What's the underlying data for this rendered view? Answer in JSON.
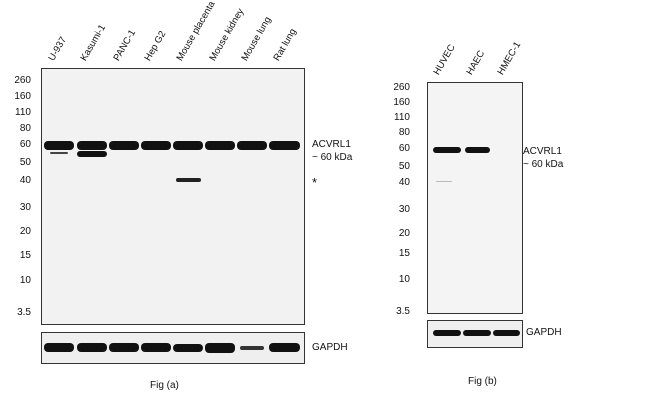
{
  "panel_a": {
    "lanes": [
      "U-937",
      "Kasumi-1",
      "PANC-1",
      "Hep G2",
      "Mouse placenta",
      "Mouse kidney",
      "Mouse lung",
      "Rat lung"
    ],
    "markers": [
      "260",
      "160",
      "110",
      "80",
      "60",
      "50",
      "40",
      "30",
      "20",
      "15",
      "10",
      "3.5"
    ],
    "target_label_1": "ACVRL1",
    "target_label_2": "~ 60 kDa",
    "nonspecific_mark": "*",
    "loading_control": "GAPDH",
    "caption": "Fig (a)"
  },
  "panel_b": {
    "lanes": [
      "HUVEC",
      "HAEC",
      "HMEC-1"
    ],
    "markers": [
      "260",
      "160",
      "110",
      "80",
      "60",
      "50",
      "40",
      "30",
      "20",
      "15",
      "10",
      "3.5"
    ],
    "target_label_1": "ACVRL1",
    "target_label_2": "~ 60 kDa",
    "loading_control": "GAPDH",
    "caption": "Fig (b)"
  }
}
